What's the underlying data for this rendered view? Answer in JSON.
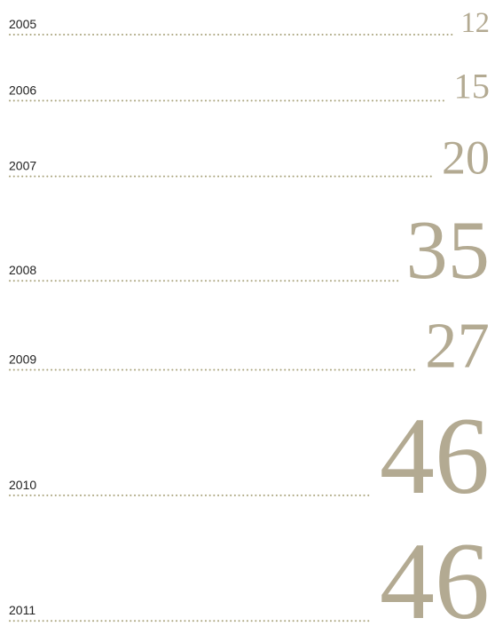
{
  "chart_data": {
    "type": "typographic",
    "categories": [
      "2005",
      "2006",
      "2007",
      "2008",
      "2009",
      "2010",
      "2011"
    ],
    "values": [
      12,
      15,
      20,
      35,
      27,
      46,
      46
    ],
    "color": "#b3aa92",
    "dot_color": "#a9a37c"
  }
}
